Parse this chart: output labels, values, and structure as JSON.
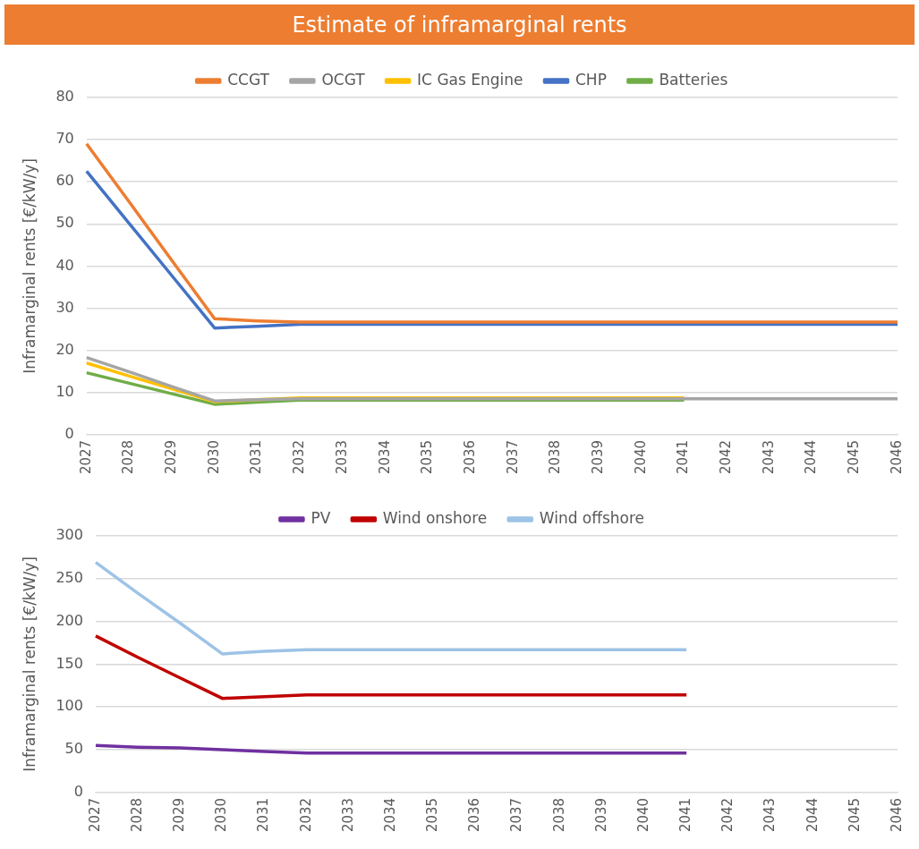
{
  "chart_data": [
    {
      "type": "line",
      "title": "Estimate of inframarginal rents",
      "ylabel": "Inframarginal rents [€/kW/y]",
      "categories": [
        "2027",
        "2028",
        "2029",
        "2030",
        "2031",
        "2032",
        "2033",
        "2034",
        "2035",
        "2036",
        "2037",
        "2038",
        "2039",
        "2040",
        "2041",
        "2042",
        "2043",
        "2044",
        "2045",
        "2046"
      ],
      "ylim": [
        0,
        80
      ],
      "yticks": [
        0,
        10,
        20,
        30,
        40,
        50,
        60,
        70,
        80
      ],
      "grid": "y",
      "legend": "top",
      "marker": "none",
      "line_style": "solid",
      "series": [
        {
          "name": "CCGT",
          "color": "#ed7d31",
          "values": [
            69,
            55.2,
            41.3,
            27.5,
            27,
            26.7,
            26.7,
            26.7,
            26.7,
            26.7,
            26.7,
            26.7,
            26.7,
            26.7,
            26.7,
            26.7,
            26.7,
            26.7,
            26.7,
            26.7
          ]
        },
        {
          "name": "OCGT",
          "color": "#a5a5a5",
          "values": [
            18.3,
            14.9,
            11.4,
            8,
            8.3,
            8.5,
            8.5,
            8.5,
            8.5,
            8.5,
            8.5,
            8.5,
            8.5,
            8.5,
            8.5,
            8.5,
            8.5,
            8.5,
            8.5,
            8.5
          ]
        },
        {
          "name": "IC Gas Engine",
          "color": "#ffc000",
          "values": [
            17,
            13.9,
            10.9,
            7.8,
            8.3,
            8.7,
            8.7,
            8.7,
            8.7,
            8.7,
            8.7,
            8.7,
            8.7,
            8.7,
            8.7,
            null,
            null,
            null,
            null,
            null
          ]
        },
        {
          "name": "CHP",
          "color": "#4472c4",
          "values": [
            62.5,
            50.1,
            37.7,
            25.3,
            25.7,
            26.2,
            26.2,
            26.2,
            26.2,
            26.2,
            26.2,
            26.2,
            26.2,
            26.2,
            26.2,
            26.2,
            26.2,
            26.2,
            26.2,
            26.2
          ]
        },
        {
          "name": "Batteries",
          "color": "#70ad47",
          "values": [
            14.7,
            12.2,
            9.7,
            7.2,
            7.7,
            8.2,
            8.2,
            8.2,
            8.2,
            8.2,
            8.2,
            8.2,
            8.2,
            8.2,
            8.2,
            null,
            null,
            null,
            null,
            null
          ]
        }
      ]
    },
    {
      "type": "line",
      "ylabel": "Inframarginal rents [€/kW/y]",
      "categories": [
        "2027",
        "2028",
        "2029",
        "2030",
        "2031",
        "2032",
        "2033",
        "2034",
        "2035",
        "2036",
        "2037",
        "2038",
        "2039",
        "2040",
        "2041",
        "2042",
        "2043",
        "2044",
        "2045",
        "2046"
      ],
      "ylim": [
        0,
        300
      ],
      "yticks": [
        0,
        50,
        100,
        150,
        200,
        250,
        300
      ],
      "grid": "y",
      "legend": "top",
      "marker": "none",
      "line_style": "solid",
      "series": [
        {
          "name": "PV",
          "color": "#7030a0",
          "values": [
            55,
            53,
            52,
            50,
            48,
            46,
            46,
            46,
            46,
            46,
            46,
            46,
            46,
            46,
            46,
            null,
            null,
            null,
            null,
            null
          ]
        },
        {
          "name": "Wind onshore",
          "color": "#c00000",
          "values": [
            183,
            158,
            134,
            110,
            112,
            114,
            114,
            114,
            114,
            114,
            114,
            114,
            114,
            114,
            114,
            null,
            null,
            null,
            null,
            null
          ]
        },
        {
          "name": "Wind offshore",
          "color": "#9dc3e6",
          "values": [
            269,
            233,
            198,
            162,
            165,
            167,
            167,
            167,
            167,
            167,
            167,
            167,
            167,
            167,
            167,
            null,
            null,
            null,
            null,
            null
          ]
        }
      ]
    }
  ]
}
